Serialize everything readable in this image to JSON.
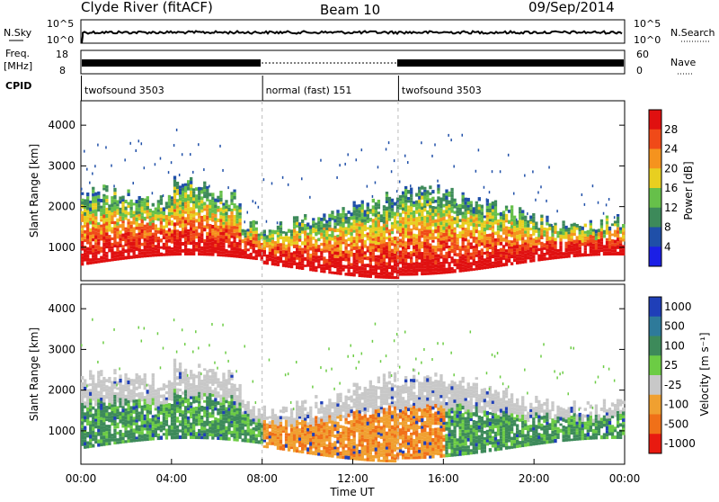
{
  "header": {
    "station": "Clyde River (fitACF)",
    "beam": "Beam 10",
    "date": "09/Sep/2014"
  },
  "top_panels": {
    "nsky_label": "N.Sky",
    "nsky_ticks": [
      "10^5",
      "10^0"
    ],
    "nsearch_label": "N.Search",
    "nsearch_ticks": [
      "10^5",
      "10^0"
    ],
    "freq_label": "Freq.",
    "freq_unit": "[MHz]",
    "freq_ticks": [
      "18",
      "8"
    ],
    "nave_label": "Nave",
    "nave_ticks": [
      "60",
      "0"
    ],
    "cpid_label": "CPID",
    "cpid_segments": [
      {
        "label": "twofsound 3503",
        "start_h": 0,
        "end_h": 8
      },
      {
        "label": "normal (fast) 151",
        "start_h": 8,
        "end_h": 14
      },
      {
        "label": "twofsound 3503",
        "start_h": 14,
        "end_h": 24
      }
    ]
  },
  "chart_data": [
    {
      "type": "heatmap",
      "name": "power-panel",
      "ylabel": "Slant Range [km]",
      "ylim": [
        180,
        4600
      ],
      "yticks": [
        "1000",
        "2000",
        "3000",
        "4000"
      ],
      "xlim": [
        0,
        24
      ],
      "colorbar_label": "Power [dB]",
      "colorbar_ticks": [
        "4",
        "8",
        "12",
        "16",
        "20",
        "24",
        "28"
      ],
      "colorbar_colors": [
        "#1b1fe6",
        "#1f4fa8",
        "#3d8a5a",
        "#66c04a",
        "#e8cf20",
        "#f5931e",
        "#f04a18",
        "#e01010"
      ]
    },
    {
      "type": "heatmap",
      "name": "velocity-panel",
      "ylabel": "Slant Range [km]",
      "ylim": [
        180,
        4600
      ],
      "yticks": [
        "1000",
        "2000",
        "3000",
        "4000"
      ],
      "xlim": [
        0,
        24
      ],
      "xticks": [
        "00:00",
        "04:00",
        "08:00",
        "12:00",
        "16:00",
        "20:00",
        "00:00"
      ],
      "xlabel": "Time UT",
      "colorbar_label": "Velocity [m s⁻¹]",
      "colorbar_ticks": [
        "1000",
        "500",
        "100",
        "25",
        "-25",
        "-100",
        "-500",
        "-1000"
      ],
      "colorbar_colors": [
        "#1f3fb8",
        "#2e7a9a",
        "#3d8a5a",
        "#6ccc44",
        "#c8c8c8",
        "#f0a030",
        "#f07018",
        "#e81a10"
      ]
    }
  ]
}
